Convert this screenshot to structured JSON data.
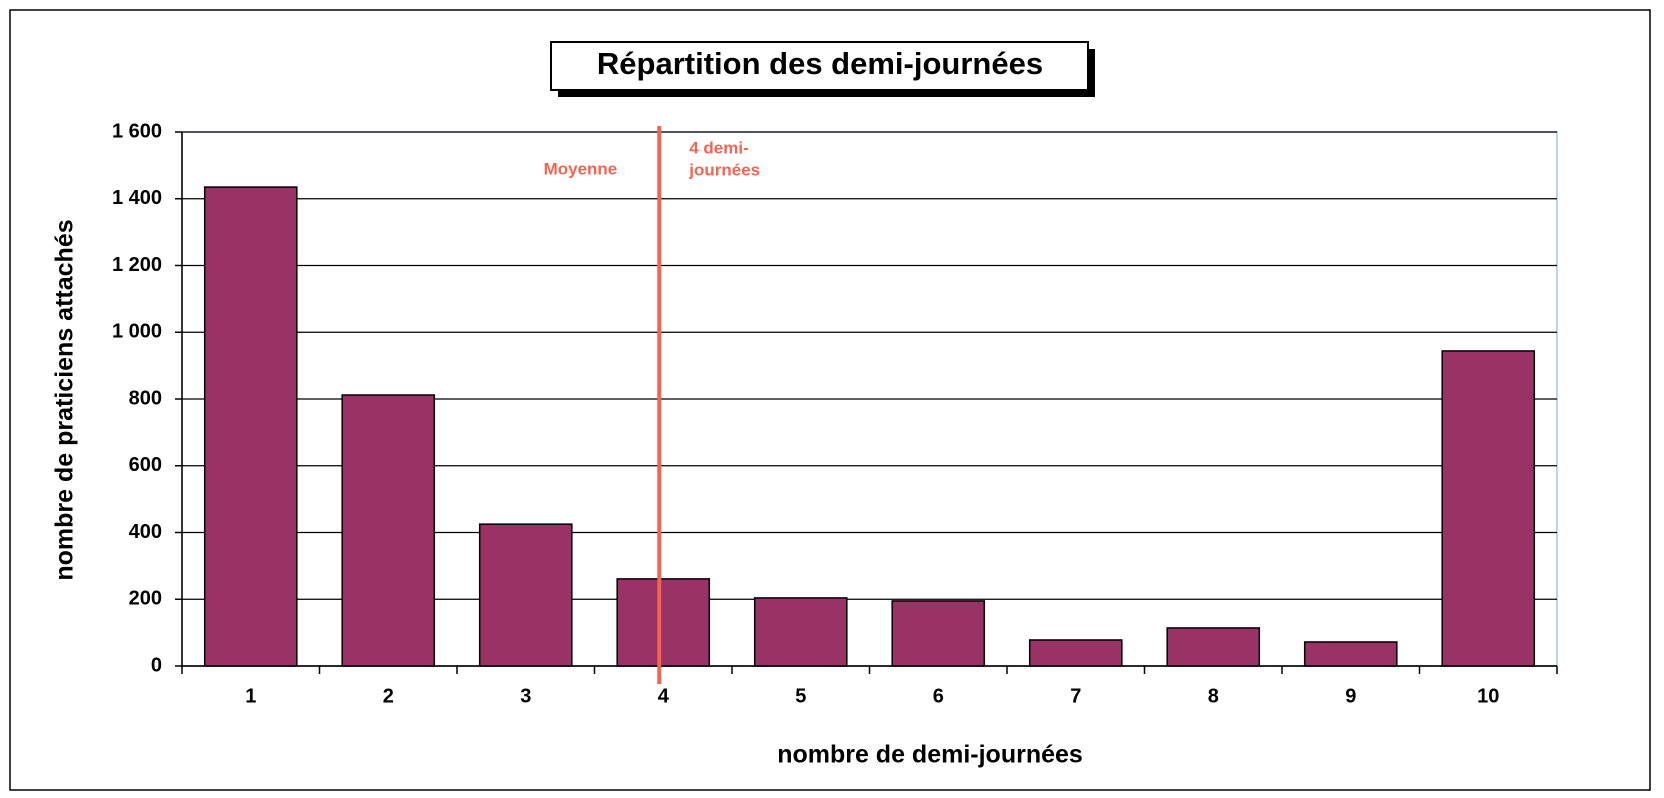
{
  "chart_data": {
    "type": "bar",
    "title": "Répartition des demi-journées",
    "categories": [
      "1",
      "2",
      "3",
      "4",
      "5",
      "6",
      "7",
      "8",
      "9",
      "10"
    ],
    "values": [
      1435,
      812,
      425,
      261,
      204,
      195,
      78,
      114,
      72,
      944
    ],
    "color": "#993366",
    "x_label": "nombre de demi-journées",
    "y_label": "nombre de praticiens attachés",
    "ylim": [
      0,
      1600
    ],
    "yticks": [
      0,
      200,
      400,
      600,
      800,
      {
        "value": 1000,
        "label": "1 000"
      },
      {
        "value": 1200,
        "label": "1 200"
      },
      {
        "value": 1400,
        "label": "1 400"
      },
      {
        "value": 1600,
        "label": "1 600"
      }
    ],
    "grid": true,
    "mean_line": {
      "value": 4,
      "label": "Moyenne",
      "note_lines": [
        "4 demi-",
        "journées"
      ],
      "color": "#f26552"
    }
  }
}
